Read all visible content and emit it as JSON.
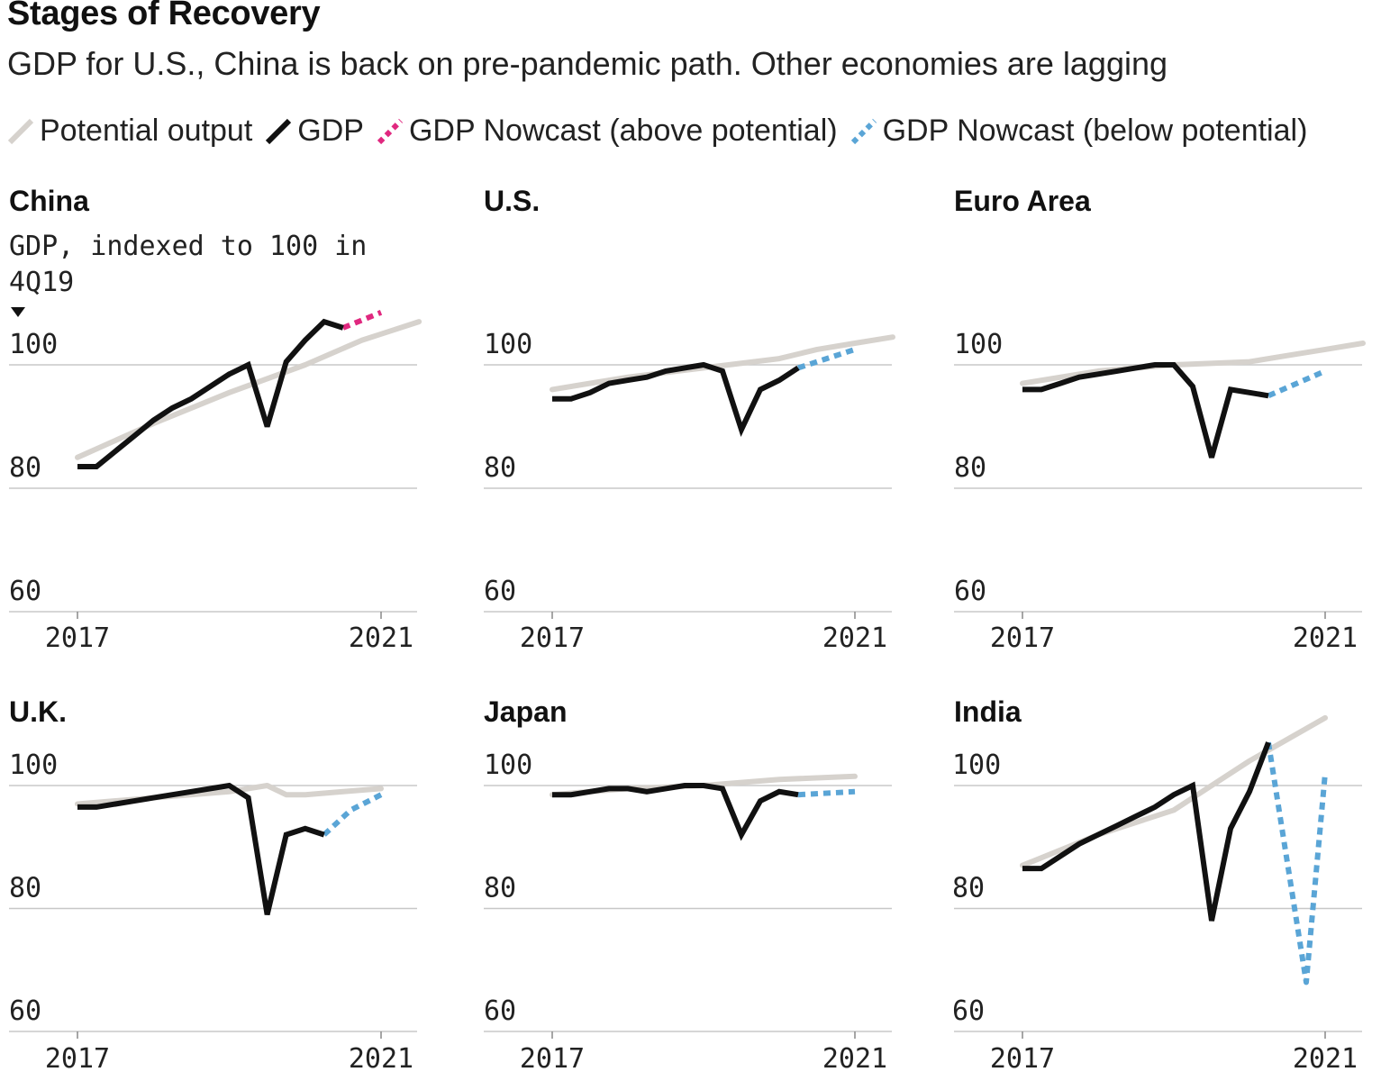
{
  "title": "Stages of Recovery",
  "subtitle": "GDP for U.S., China is back on pre-pandemic path. Other economies are lagging",
  "legend": {
    "potential": "Potential output",
    "gdp": "GDP",
    "nowcast_above": "GDP Nowcast (above potential)",
    "nowcast_below": "GDP Nowcast (below potential)"
  },
  "unit_note": "GDP, indexed to 100 in 4Q19",
  "colors": {
    "potential": "#d6d2cd",
    "gdp": "#111111",
    "nowcast_above": "#e0287f",
    "nowcast_below": "#5aa5d6",
    "grid": "#c8c8c8"
  },
  "chart_data": [
    {
      "type": "line",
      "title": "China",
      "xlim": [
        2017,
        2021.125
      ],
      "ylim": [
        60,
        110
      ],
      "yticks": [
        60,
        80,
        100
      ],
      "xticks": [
        "2017",
        "2021"
      ],
      "potential": [
        [
          2017,
          85
        ],
        [
          2018,
          90.5
        ],
        [
          2019,
          95.5
        ],
        [
          2020,
          100
        ],
        [
          2020.75,
          104
        ],
        [
          2021,
          105
        ],
        [
          2021.5,
          107
        ]
      ],
      "gdp": [
        [
          2017,
          83.5
        ],
        [
          2017.25,
          83.5
        ],
        [
          2017.5,
          86
        ],
        [
          2017.75,
          88.5
        ],
        [
          2018,
          91
        ],
        [
          2018.25,
          93
        ],
        [
          2018.5,
          94.5
        ],
        [
          2018.75,
          96.5
        ],
        [
          2019,
          98.5
        ],
        [
          2019.25,
          100
        ],
        [
          2019.5,
          90
        ],
        [
          2019.75,
          100.5
        ],
        [
          2020,
          104
        ],
        [
          2020.25,
          107
        ],
        [
          2020.5,
          106
        ]
      ],
      "nowcast": {
        "kind": "above",
        "points": [
          [
            2020.5,
            106
          ],
          [
            2021,
            108.5
          ]
        ]
      }
    },
    {
      "type": "line",
      "title": "U.S.",
      "xlim": [
        2017,
        2021.125
      ],
      "ylim": [
        60,
        110
      ],
      "yticks": [
        60,
        80,
        100
      ],
      "xticks": [
        "2017",
        "2021"
      ],
      "potential": [
        [
          2017,
          96
        ],
        [
          2018,
          98
        ],
        [
          2019,
          99.5
        ],
        [
          2020,
          101
        ],
        [
          2020.5,
          102.5
        ],
        [
          2021,
          103.5
        ],
        [
          2021.5,
          104.5
        ]
      ],
      "gdp": [
        [
          2017,
          94.5
        ],
        [
          2017.25,
          94.5
        ],
        [
          2017.5,
          95.5
        ],
        [
          2017.75,
          97
        ],
        [
          2018,
          97.5
        ],
        [
          2018.25,
          98
        ],
        [
          2018.5,
          99
        ],
        [
          2018.75,
          99.5
        ],
        [
          2019,
          100
        ],
        [
          2019.25,
          99
        ],
        [
          2019.5,
          89.5
        ],
        [
          2019.75,
          96
        ],
        [
          2020,
          97.5
        ],
        [
          2020.25,
          99.5
        ]
      ],
      "nowcast": {
        "kind": "below",
        "points": [
          [
            2020.25,
            99.5
          ],
          [
            2021,
            102.5
          ]
        ]
      }
    },
    {
      "type": "line",
      "title": "Euro Area",
      "xlim": [
        2017,
        2021.125
      ],
      "ylim": [
        60,
        110
      ],
      "yticks": [
        60,
        80,
        100
      ],
      "xticks": [
        "2017",
        "2021"
      ],
      "potential": [
        [
          2017,
          97
        ],
        [
          2018,
          99
        ],
        [
          2019,
          100
        ],
        [
          2020,
          100.5
        ],
        [
          2020.5,
          101.5
        ],
        [
          2021,
          102.5
        ],
        [
          2021.5,
          103.5
        ]
      ],
      "gdp": [
        [
          2017,
          96
        ],
        [
          2017.25,
          96
        ],
        [
          2017.5,
          97
        ],
        [
          2017.75,
          98
        ],
        [
          2018,
          98.5
        ],
        [
          2018.25,
          99
        ],
        [
          2018.5,
          99.5
        ],
        [
          2018.75,
          100
        ],
        [
          2019,
          100
        ],
        [
          2019.25,
          96.5
        ],
        [
          2019.5,
          85
        ],
        [
          2019.75,
          96
        ],
        [
          2020,
          95.5
        ],
        [
          2020.25,
          95
        ]
      ],
      "nowcast": {
        "kind": "below",
        "points": [
          [
            2020.25,
            95
          ],
          [
            2021,
            99
          ]
        ]
      }
    },
    {
      "type": "line",
      "title": "U.K.",
      "xlim": [
        2017,
        2021.125
      ],
      "ylim": [
        60,
        110
      ],
      "yticks": [
        60,
        80,
        100
      ],
      "xticks": [
        "2017",
        "2021"
      ],
      "potential": [
        [
          2017,
          97
        ],
        [
          2018,
          98
        ],
        [
          2019,
          99
        ],
        [
          2019.5,
          100
        ],
        [
          2019.75,
          98.5
        ],
        [
          2020,
          98.5
        ],
        [
          2020.5,
          99
        ],
        [
          2021,
          99.5
        ]
      ],
      "gdp": [
        [
          2017,
          96.5
        ],
        [
          2017.25,
          96.5
        ],
        [
          2017.5,
          97
        ],
        [
          2017.75,
          97.5
        ],
        [
          2018,
          98
        ],
        [
          2018.5,
          99
        ],
        [
          2019,
          100
        ],
        [
          2019.25,
          98
        ],
        [
          2019.5,
          79
        ],
        [
          2019.75,
          92
        ],
        [
          2020,
          93
        ],
        [
          2020.25,
          92
        ]
      ],
      "nowcast": {
        "kind": "below",
        "points": [
          [
            2020.25,
            92
          ],
          [
            2020.6,
            96
          ],
          [
            2021,
            98.5
          ]
        ]
      }
    },
    {
      "type": "line",
      "title": "Japan",
      "xlim": [
        2017,
        2021.125
      ],
      "ylim": [
        60,
        110
      ],
      "yticks": [
        60,
        80,
        100
      ],
      "xticks": [
        "2017",
        "2021"
      ],
      "potential": [
        [
          2017,
          98.5
        ],
        [
          2018,
          99.5
        ],
        [
          2019,
          100
        ],
        [
          2019.5,
          100.5
        ],
        [
          2020,
          101
        ],
        [
          2021,
          101.5
        ]
      ],
      "gdp": [
        [
          2017,
          98.5
        ],
        [
          2017.25,
          98.5
        ],
        [
          2017.5,
          99
        ],
        [
          2017.75,
          99.5
        ],
        [
          2018,
          99.5
        ],
        [
          2018.25,
          99
        ],
        [
          2018.5,
          99.5
        ],
        [
          2018.75,
          100
        ],
        [
          2019,
          100
        ],
        [
          2019.25,
          99.5
        ],
        [
          2019.5,
          92
        ],
        [
          2019.75,
          97.5
        ],
        [
          2020,
          99
        ],
        [
          2020.25,
          98.5
        ]
      ],
      "nowcast": {
        "kind": "below",
        "points": [
          [
            2020.25,
            98.5
          ],
          [
            2021,
            99
          ]
        ]
      }
    },
    {
      "type": "line",
      "title": "India",
      "xlim": [
        2017,
        2021.125
      ],
      "ylim": [
        60,
        110
      ],
      "yticks": [
        60,
        80,
        100
      ],
      "xticks": [
        "2017",
        "2021"
      ],
      "potential": [
        [
          2017,
          87
        ],
        [
          2018,
          92
        ],
        [
          2019,
          96
        ],
        [
          2020,
          104
        ],
        [
          2021,
          111
        ]
      ],
      "gdp": [
        [
          2017,
          86.5
        ],
        [
          2017.25,
          86.5
        ],
        [
          2017.5,
          88.5
        ],
        [
          2017.75,
          90.5
        ],
        [
          2018,
          92
        ],
        [
          2018.25,
          93.5
        ],
        [
          2018.5,
          95
        ],
        [
          2018.75,
          96.5
        ],
        [
          2019,
          98.5
        ],
        [
          2019.25,
          100
        ],
        [
          2019.5,
          78
        ],
        [
          2019.75,
          93
        ],
        [
          2020,
          99
        ],
        [
          2020.25,
          107
        ]
      ],
      "nowcast": {
        "kind": "below",
        "points": [
          [
            2020.25,
            107
          ],
          [
            2020.75,
            68
          ],
          [
            2021,
            102
          ]
        ]
      }
    }
  ]
}
